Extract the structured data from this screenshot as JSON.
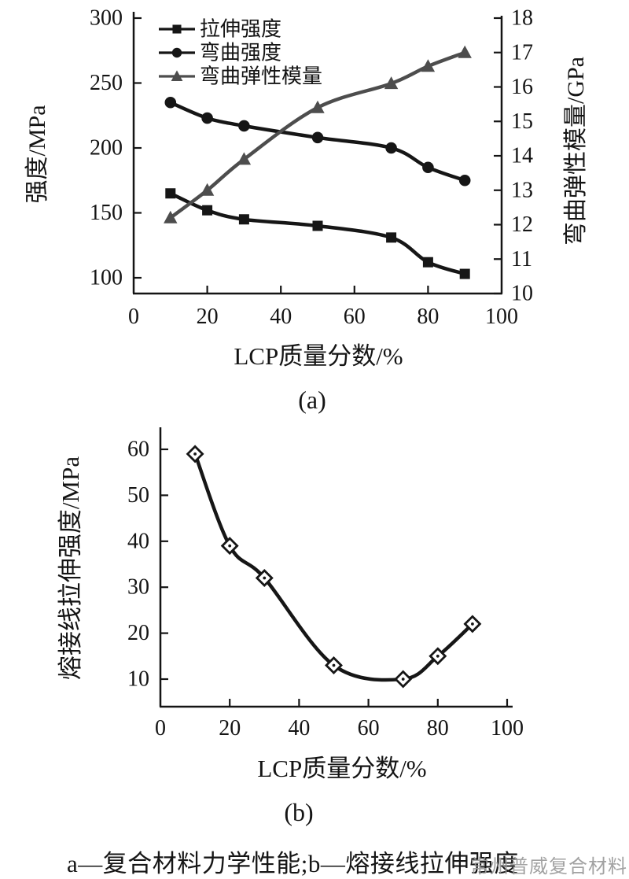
{
  "caption": {
    "text": "a—复合材料力学性能;b—熔接线拉伸强度"
  },
  "watermark": {
    "text": "常州普威复合材料"
  },
  "colors": {
    "axis": "#141414",
    "line": "#161616",
    "triangle_gray": "#4d4d4d",
    "watermark_gray": "#9b9b9b",
    "background": "#ffffff"
  },
  "chart_data": [
    {
      "id": "a",
      "type": "line",
      "panel_label": "(a)",
      "xlabel": "LCP质量分数/%",
      "ylabel_left": "强度/MPa",
      "ylabel_right": "弯曲弹性模量/GPa",
      "xlim": [
        0,
        100
      ],
      "xticks": [
        0,
        20,
        40,
        60,
        80,
        100
      ],
      "ylim_left": [
        100,
        300
      ],
      "yticks_left": [
        100,
        150,
        200,
        250,
        300
      ],
      "ylim_right": [
        10,
        18
      ],
      "yticks_right": [
        10,
        11,
        12,
        13,
        14,
        15,
        16,
        17,
        18
      ],
      "grid": false,
      "legend_position": "top-left",
      "x": [
        10,
        20,
        30,
        50,
        70,
        80,
        90
      ],
      "series": [
        {
          "name": "拉伸强度",
          "marker": "square",
          "axis": "left",
          "values": [
            165,
            152,
            145,
            140,
            131,
            112,
            103
          ]
        },
        {
          "name": "弯曲强度",
          "marker": "circle",
          "axis": "left",
          "values": [
            235,
            223,
            217,
            208,
            200,
            185,
            175
          ]
        },
        {
          "name": "弯曲弹性模量",
          "marker": "triangle",
          "axis": "right",
          "values": [
            12.2,
            13,
            13.9,
            15.4,
            16.1,
            16.6,
            17
          ]
        }
      ]
    },
    {
      "id": "b",
      "type": "line",
      "panel_label": "(b)",
      "xlabel": "LCP质量分数/%",
      "ylabel": "熔接线拉伸强度/MPa",
      "xlim": [
        0,
        100
      ],
      "xticks": [
        0,
        20,
        40,
        60,
        80,
        100
      ],
      "ylim": [
        4,
        64
      ],
      "yticks": [
        10,
        20,
        30,
        40,
        50,
        60
      ],
      "grid": false,
      "marker": "diamond-open",
      "x": [
        10,
        20,
        30,
        50,
        70,
        80,
        90
      ],
      "values": [
        59,
        39,
        32,
        13,
        10,
        15,
        22
      ]
    }
  ]
}
